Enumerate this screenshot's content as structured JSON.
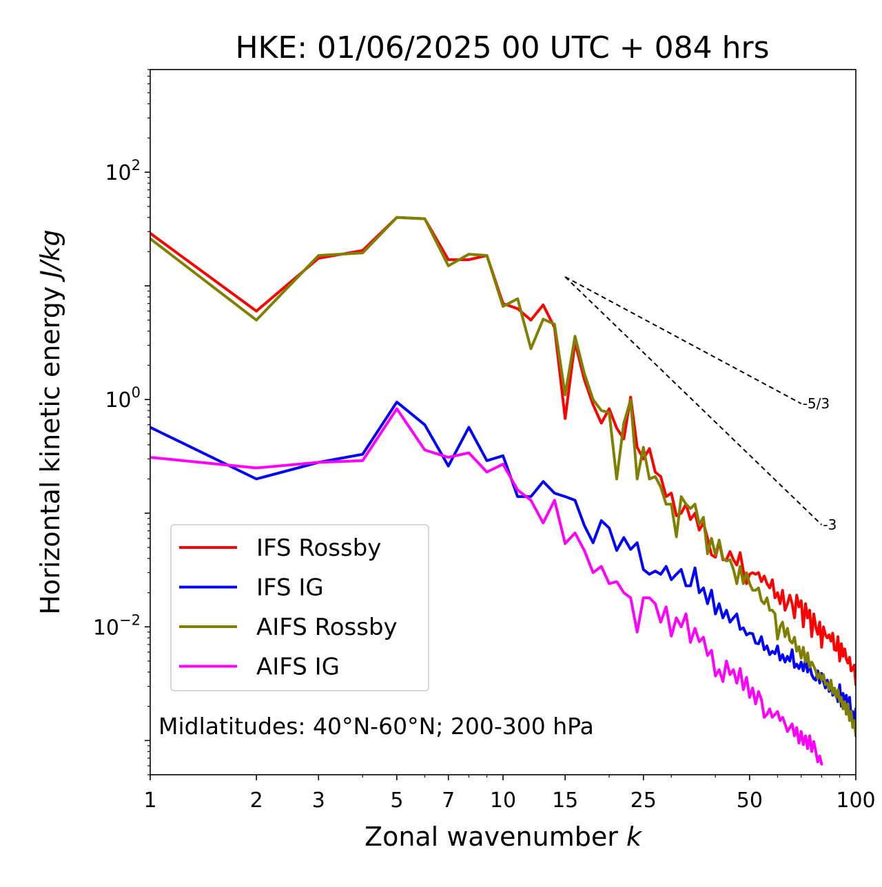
{
  "chart_data": {
    "type": "line",
    "title": "HKE: 01/06/2025 00 UTC + 084 hrs",
    "xlabel": "Zonal wavenumber",
    "xlabel_var": "k",
    "ylabel": "Horizontal kinetic energy",
    "ylabel_unit": "J/kg",
    "xscale": "log",
    "yscale": "log",
    "xlim": [
      1,
      100
    ],
    "ylim": [
      0.0005,
      800
    ],
    "x_ticks": [
      1,
      2,
      3,
      5,
      7,
      10,
      15,
      25,
      50,
      100
    ],
    "x_tick_labels": [
      "1",
      "2",
      "3",
      "5",
      "7",
      "10",
      "15",
      "25",
      "50",
      "100"
    ],
    "y_ticks": [
      100,
      1,
      0.01
    ],
    "y_tick_labels": [
      {
        "base": "10",
        "exp": "2"
      },
      {
        "base": "10",
        "exp": "0"
      },
      {
        "base": "10",
        "exp": "−2"
      }
    ],
    "grid": false,
    "legend_position": "lower-left",
    "annotation": "Midlatitudes: 40°N-60°N; 200-300 hPa",
    "reference_slopes": [
      {
        "label": "-5/3",
        "exponent": -1.6667,
        "x_start": 15,
        "x_end": 70,
        "y_start": 12
      },
      {
        "label": "-3",
        "exponent": -3,
        "x_start": 15,
        "x_end": 80,
        "y_start": 12
      }
    ],
    "series": [
      {
        "name": "IFS Rossby",
        "color": "#ff0000",
        "x": [
          1,
          2,
          3,
          4,
          5,
          6,
          7,
          8,
          9,
          10,
          11,
          12,
          13,
          14,
          15,
          16,
          17,
          18,
          19,
          20,
          21,
          22,
          23,
          24,
          25,
          26,
          27,
          28,
          29,
          30,
          31,
          32,
          33,
          34,
          35,
          36,
          37,
          38,
          39,
          40,
          41,
          42,
          43,
          44,
          45,
          46,
          47,
          48,
          49,
          50,
          51,
          52,
          53,
          54,
          55,
          56,
          57,
          58,
          59,
          60,
          61,
          62,
          63,
          64,
          65,
          66,
          67,
          68,
          69,
          70,
          71,
          72,
          73,
          74,
          75,
          76,
          77,
          78,
          79,
          80,
          81,
          82,
          83,
          84,
          85,
          86,
          87,
          88,
          89,
          90,
          91,
          92,
          93,
          94,
          95,
          96,
          97,
          98,
          99,
          100
        ],
        "y": [
          29,
          6,
          17.5,
          20.5,
          40,
          39,
          17,
          17,
          18.5,
          7,
          6.3,
          5,
          6.8,
          4.3,
          0.68,
          3.2,
          1.5,
          0.9,
          0.62,
          0.83,
          0.56,
          0.45,
          1.05,
          0.38,
          0.3,
          0.37,
          0.23,
          0.21,
          0.14,
          0.15,
          0.095,
          0.1,
          0.12,
          0.088,
          0.1,
          0.071,
          0.082,
          0.06,
          0.043,
          0.041,
          0.056,
          0.039,
          0.039,
          0.046,
          0.039,
          0.035,
          0.045,
          0.031,
          0.024,
          0.029,
          0.03,
          0.029,
          0.03,
          0.025,
          0.028,
          0.024,
          0.022,
          0.026,
          0.018,
          0.02,
          0.016,
          0.021,
          0.014,
          0.016,
          0.019,
          0.016,
          0.012,
          0.019,
          0.015,
          0.017,
          0.01,
          0.016,
          0.012,
          0.014,
          0.0082,
          0.013,
          0.01,
          0.0086,
          0.011,
          0.0066,
          0.01,
          0.0085,
          0.008,
          0.0085,
          0.0075,
          0.0088,
          0.0063,
          0.0062,
          0.0082,
          0.005,
          0.0071,
          0.0055,
          0.0064,
          0.0052,
          0.0048,
          0.0054,
          0.0041,
          0.0043,
          0.0046,
          0.0031
        ]
      },
      {
        "name": "IFS IG",
        "color": "#0000ff",
        "x": [
          1,
          2,
          3,
          4,
          5,
          6,
          7,
          8,
          9,
          10,
          11,
          12,
          13,
          14,
          15,
          16,
          17,
          18,
          19,
          20,
          21,
          22,
          23,
          24,
          25,
          26,
          27,
          28,
          29,
          30,
          31,
          32,
          33,
          34,
          35,
          36,
          37,
          38,
          39,
          40,
          41,
          42,
          43,
          44,
          45,
          46,
          47,
          48,
          49,
          50,
          51,
          52,
          53,
          54,
          55,
          56,
          57,
          58,
          59,
          60,
          61,
          62,
          63,
          64,
          65,
          66,
          67,
          68,
          69,
          70,
          71,
          72,
          73,
          74,
          75,
          76,
          77,
          78,
          79,
          80,
          81,
          82,
          83,
          84,
          85,
          86,
          87,
          88,
          89,
          90,
          91,
          92,
          93,
          94,
          95,
          96,
          97,
          98,
          99,
          100
        ],
        "y": [
          0.57,
          0.2,
          0.28,
          0.33,
          0.95,
          0.6,
          0.26,
          0.57,
          0.29,
          0.32,
          0.14,
          0.14,
          0.19,
          0.15,
          0.14,
          0.13,
          0.078,
          0.055,
          0.086,
          0.074,
          0.047,
          0.061,
          0.048,
          0.055,
          0.032,
          0.029,
          0.031,
          0.029,
          0.034,
          0.026,
          0.029,
          0.032,
          0.023,
          0.023,
          0.033,
          0.02,
          0.022,
          0.016,
          0.021,
          0.013,
          0.016,
          0.012,
          0.014,
          0.011,
          0.012,
          0.013,
          0.0095,
          0.0098,
          0.0085,
          0.0088,
          0.0087,
          0.0072,
          0.0071,
          0.0082,
          0.0063,
          0.0068,
          0.0057,
          0.0061,
          0.0058,
          0.0068,
          0.0051,
          0.0057,
          0.0049,
          0.0055,
          0.005,
          0.0063,
          0.0044,
          0.0047,
          0.0043,
          0.0049,
          0.0041,
          0.0052,
          0.004,
          0.0046,
          0.0038,
          0.0035,
          0.0034,
          0.0041,
          0.0032,
          0.0039,
          0.0033,
          0.0029,
          0.0034,
          0.0027,
          0.0031,
          0.0025,
          0.0028,
          0.0026,
          0.0022,
          0.0031,
          0.002,
          0.0026,
          0.0021,
          0.0025,
          0.0018,
          0.0024,
          0.0016,
          0.0018,
          0.0014,
          0.0019
        ]
      },
      {
        "name": "AIFS Rossby",
        "color": "#808000",
        "x": [
          1,
          2,
          3,
          4,
          5,
          6,
          7,
          8,
          9,
          10,
          11,
          12,
          13,
          14,
          15,
          16,
          17,
          18,
          19,
          20,
          21,
          22,
          23,
          24,
          25,
          26,
          27,
          28,
          29,
          30,
          31,
          32,
          33,
          34,
          35,
          36,
          37,
          38,
          39,
          40,
          41,
          42,
          43,
          44,
          45,
          46,
          47,
          48,
          49,
          50,
          51,
          52,
          53,
          54,
          55,
          56,
          57,
          58,
          59,
          60,
          61,
          62,
          63,
          64,
          65,
          66,
          67,
          68,
          69,
          70,
          71,
          72,
          73,
          74,
          75,
          76,
          77,
          78,
          79,
          80,
          81,
          82,
          83,
          84,
          85,
          86,
          87,
          88,
          89,
          90,
          91,
          92,
          93,
          94,
          95,
          96,
          97,
          98,
          99,
          100
        ],
        "y": [
          26,
          5,
          18.5,
          19.5,
          40,
          39,
          15,
          19,
          18.5,
          6.6,
          7.7,
          2.8,
          5.1,
          4.6,
          1.1,
          3.6,
          1.7,
          1,
          0.8,
          0.77,
          0.2,
          0.62,
          0.99,
          0.2,
          0.38,
          0.2,
          0.21,
          0.17,
          0.12,
          0.12,
          0.062,
          0.14,
          0.12,
          0.11,
          0.12,
          0.08,
          0.092,
          0.044,
          0.06,
          0.043,
          0.058,
          0.04,
          0.038,
          0.039,
          0.032,
          0.024,
          0.034,
          0.024,
          0.03,
          0.024,
          0.021,
          0.021,
          0.022,
          0.017,
          0.016,
          0.018,
          0.014,
          0.014,
          0.013,
          0.0078,
          0.01,
          0.011,
          0.0082,
          0.0097,
          0.0076,
          0.0072,
          0.0081,
          0.0061,
          0.0067,
          0.0053,
          0.0066,
          0.0049,
          0.0059,
          0.0044,
          0.0049,
          0.0045,
          0.0041,
          0.0035,
          0.0039,
          0.0034,
          0.0038,
          0.0031,
          0.0032,
          0.0028,
          0.0034,
          0.0026,
          0.0029,
          0.0024,
          0.0028,
          0.0022,
          0.0024,
          0.0019,
          0.0022,
          0.0017,
          0.0021,
          0.0015,
          0.0018,
          0.0013,
          0.0015,
          0.0011
        ]
      },
      {
        "name": "AIFS IG",
        "color": "#ff00ff",
        "x": [
          1,
          2,
          3,
          4,
          5,
          6,
          7,
          8,
          9,
          10,
          11,
          12,
          13,
          14,
          15,
          16,
          17,
          18,
          19,
          20,
          21,
          22,
          23,
          24,
          25,
          26,
          27,
          28,
          29,
          30,
          31,
          32,
          33,
          34,
          35,
          36,
          37,
          38,
          39,
          40,
          41,
          42,
          43,
          44,
          45,
          46,
          47,
          48,
          49,
          50,
          51,
          52,
          53,
          54,
          55,
          56,
          57,
          58,
          59,
          60,
          61,
          62,
          63,
          64,
          65,
          66,
          67,
          68,
          69,
          70,
          71,
          72,
          73,
          74,
          75,
          76,
          77,
          78,
          79,
          80
        ],
        "y": [
          0.31,
          0.25,
          0.28,
          0.29,
          0.83,
          0.36,
          0.31,
          0.34,
          0.23,
          0.27,
          0.16,
          0.13,
          0.082,
          0.13,
          0.054,
          0.067,
          0.047,
          0.03,
          0.034,
          0.024,
          0.025,
          0.02,
          0.018,
          0.009,
          0.018,
          0.018,
          0.016,
          0.011,
          0.015,
          0.0083,
          0.012,
          0.01,
          0.013,
          0.0073,
          0.0097,
          0.0074,
          0.0081,
          0.0056,
          0.0062,
          0.0037,
          0.0042,
          0.0033,
          0.005,
          0.0038,
          0.0042,
          0.0032,
          0.0043,
          0.0028,
          0.0036,
          0.0024,
          0.0029,
          0.0021,
          0.0027,
          0.0023,
          0.0016,
          0.0017,
          0.0019,
          0.0016,
          0.0017,
          0.0018,
          0.0015,
          0.0016,
          0.0014,
          0.0012,
          0.0013,
          0.0014,
          0.0011,
          0.0013,
          0.00095,
          0.0012,
          0.00092,
          0.0011,
          0.00085,
          0.0011,
          0.0008,
          0.00098,
          0.0008,
          0.00065,
          0.00073,
          0.00062
        ]
      }
    ]
  }
}
